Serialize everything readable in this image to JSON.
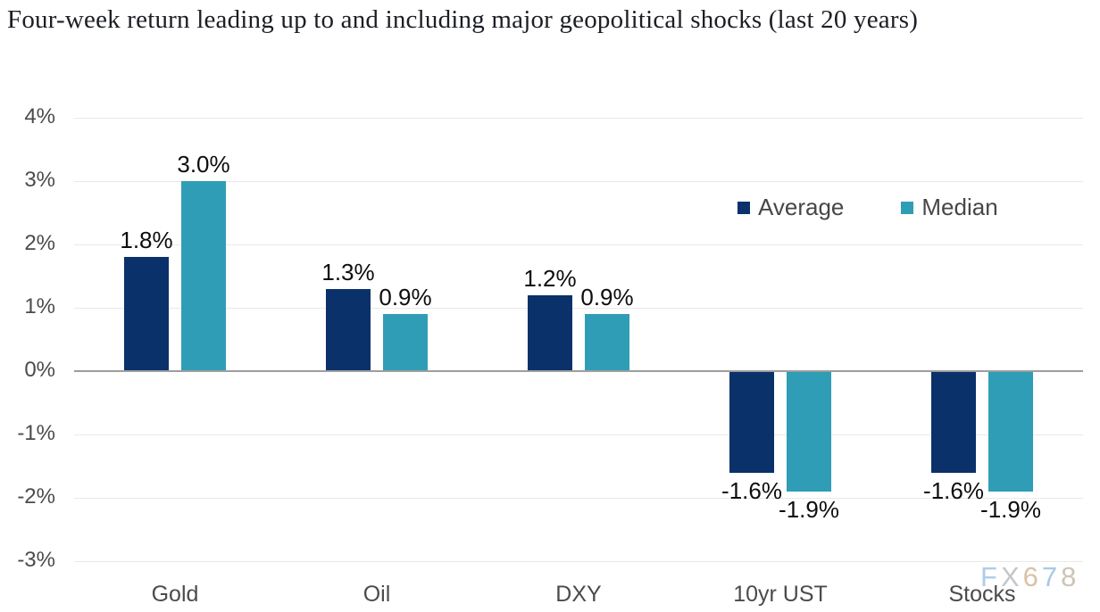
{
  "title": "Four-week return leading up to and including major geopolitical shocks (last 20 years)",
  "legend": {
    "items": [
      {
        "label": "Average",
        "color": "#0a316a"
      },
      {
        "label": "Median",
        "color": "#2f9db6"
      }
    ]
  },
  "watermark": {
    "text": "FX678",
    "letters": [
      {
        "ch": "F",
        "color": "#aecdea"
      },
      {
        "ch": "X",
        "color": "#c2c6cc"
      },
      {
        "ch": "6",
        "color": "#d9c2a9"
      },
      {
        "ch": "7",
        "color": "#a6c8ea"
      },
      {
        "ch": "8",
        "color": "#cfc3b6"
      }
    ]
  },
  "colors": {
    "average_bar": "#0a316a",
    "median_bar": "#2f9db6",
    "gridline": "#e9e9e9",
    "zero_line": "#9e9e9e",
    "axis_text": "#4b4b4b",
    "value_label_text": "#0d0d0d",
    "title_text": "#1c1e24"
  },
  "chart_data": {
    "type": "bar",
    "title": "Four-week return leading up to and including major geopolitical shocks (last 20 years)",
    "categories": [
      "Gold",
      "Oil",
      "DXY",
      "10yr UST",
      "Stocks"
    ],
    "series": [
      {
        "name": "Average",
        "color": "#0a316a",
        "values": [
          1.8,
          1.3,
          1.2,
          -1.6,
          -1.6
        ],
        "labels": [
          "1.8%",
          "1.3%",
          "1.2%",
          "-1.6%",
          "-1.6%"
        ]
      },
      {
        "name": "Median",
        "color": "#2f9db6",
        "values": [
          3.0,
          0.9,
          0.9,
          -1.9,
          -1.9
        ],
        "labels": [
          "3.0%",
          "0.9%",
          "0.9%",
          "-1.9%",
          "-1.9%"
        ]
      }
    ],
    "y_axis": {
      "unit": "%",
      "min": -3,
      "max": 4,
      "ticks": [
        {
          "label": "4%",
          "value": 4
        },
        {
          "label": "3%",
          "value": 3
        },
        {
          "label": "2%",
          "value": 2
        },
        {
          "label": "1%",
          "value": 1
        },
        {
          "label": "0%",
          "value": 0
        },
        {
          "label": "-1%",
          "value": -1
        },
        {
          "label": "-2%",
          "value": -2
        },
        {
          "label": "-3%",
          "value": -3
        }
      ]
    },
    "xlabel": "",
    "ylabel": "",
    "grid": true,
    "legend_position": "inside-upper-right"
  }
}
